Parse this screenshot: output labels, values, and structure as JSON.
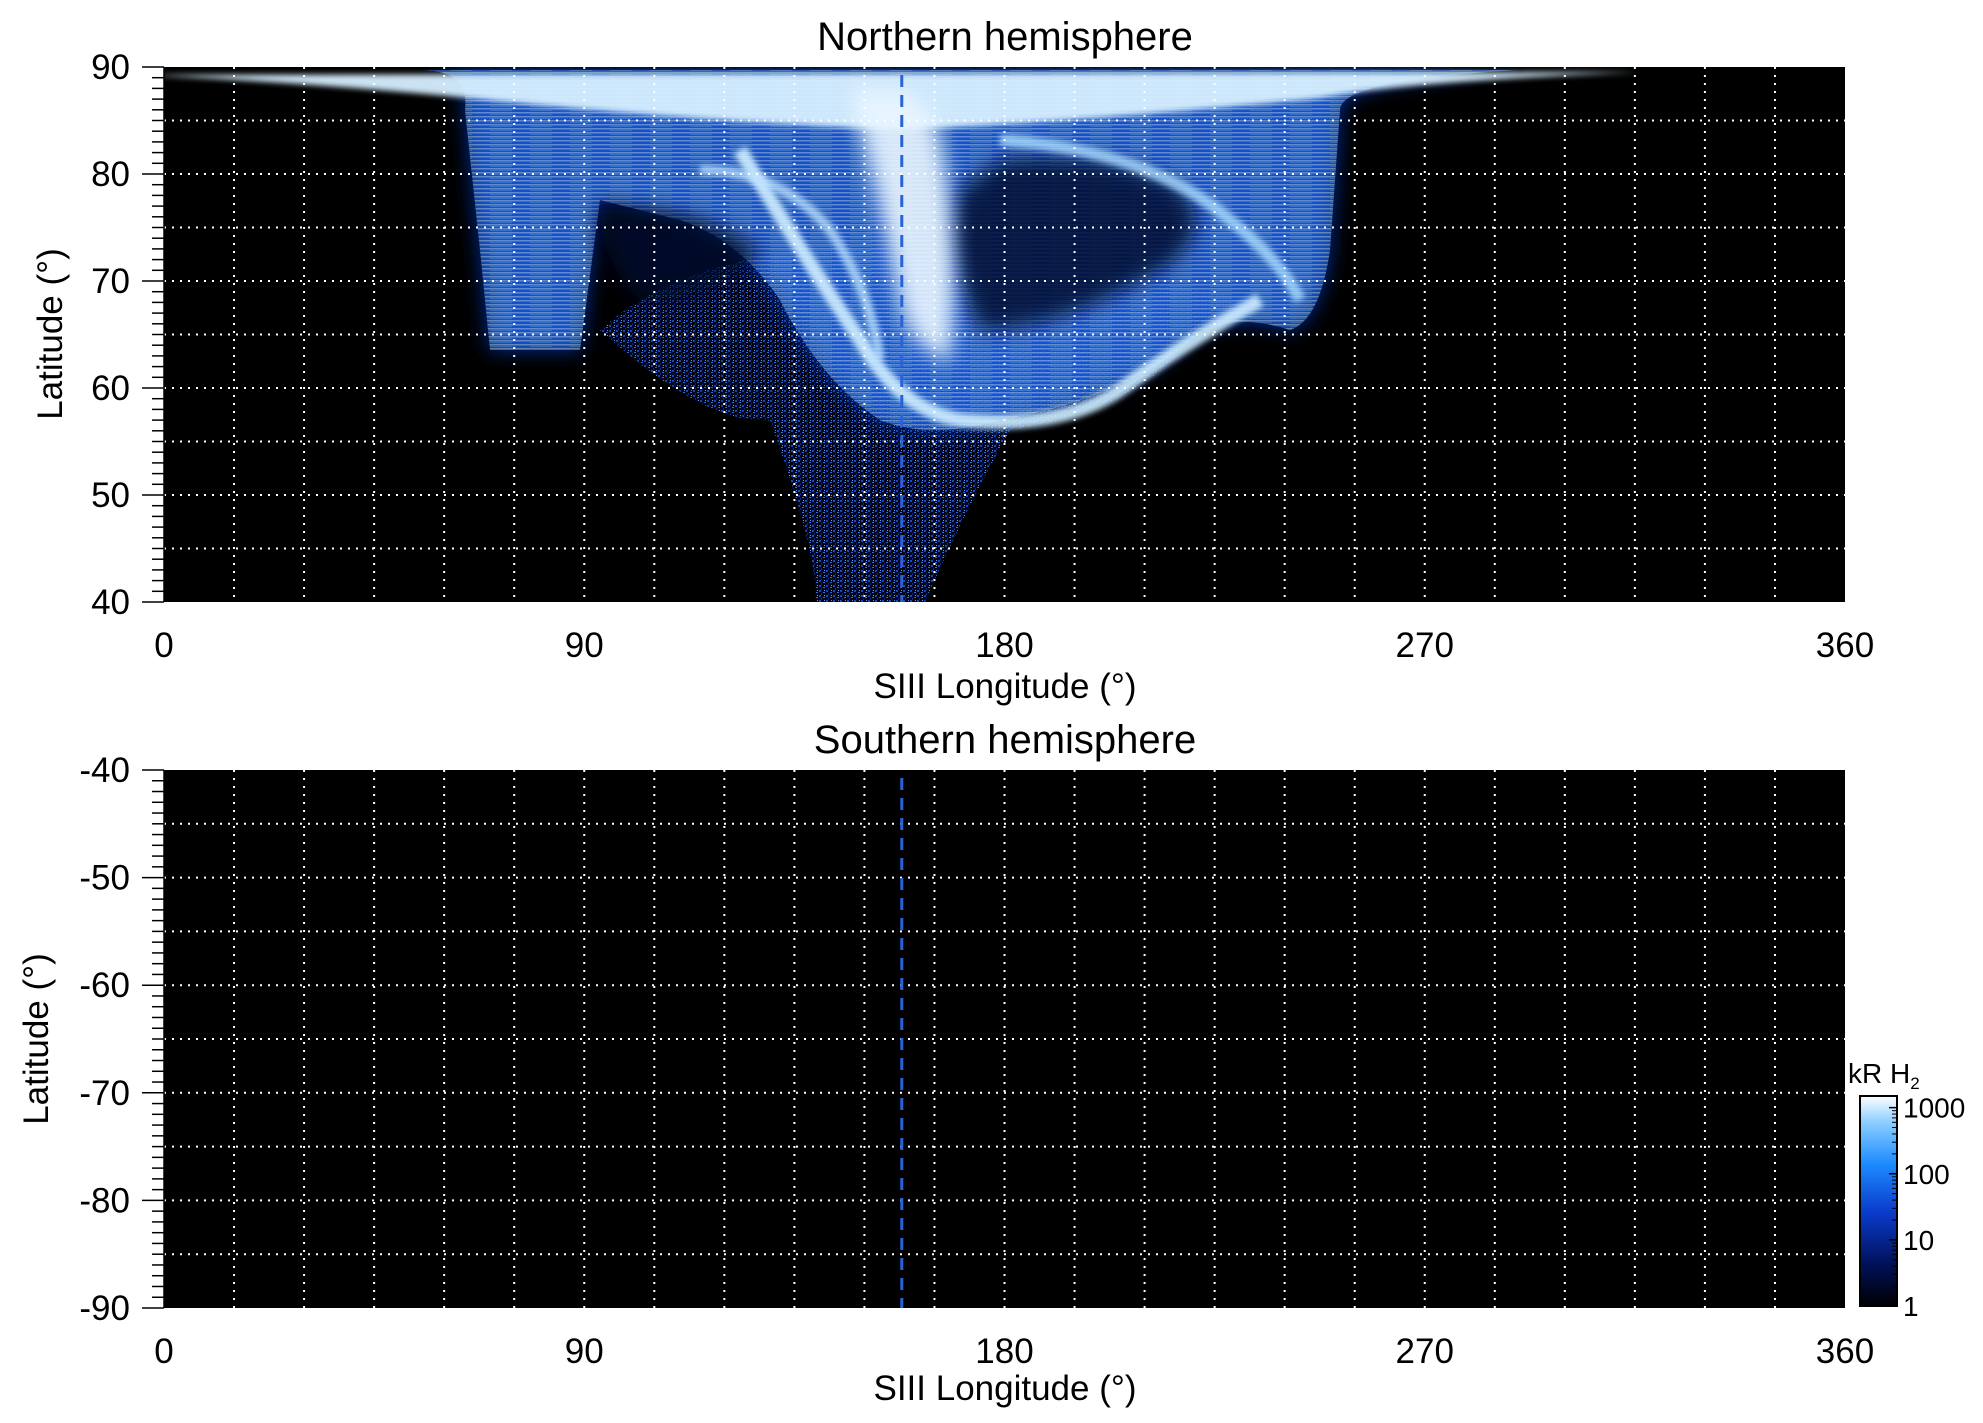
{
  "chart_data": [
    {
      "type": "heatmap",
      "title": "Northern hemisphere",
      "xlabel": "SIII Longitude (°)",
      "ylabel": "Latitude (°)",
      "xlim": [
        0,
        360
      ],
      "ylim": [
        40,
        90
      ],
      "xticks": [
        "0",
        "90",
        "180",
        "270",
        "360"
      ],
      "yticks": [
        "40",
        "50",
        "60",
        "70",
        "80",
        "90"
      ],
      "grid": true,
      "grid_style": "dotted white",
      "reference_longitude": 158,
      "background_color": "#000000",
      "emission": {
        "description_of_data": "auroral H2 emission intensity mapped in SIII longitude vs latitude; bright oval spanning ~60-250° longitude, 50-90° latitude",
        "oval_upper_lon_range": [
          65,
          250
        ],
        "oval_top_lat": 89.5,
        "main_arc_points": [
          [
            120,
            78
          ],
          [
            140,
            72
          ],
          [
            155,
            63
          ],
          [
            175,
            60
          ],
          [
            200,
            63
          ],
          [
            225,
            67
          ],
          [
            240,
            71
          ]
        ],
        "diffuse_tail_lon_range": [
          135,
          180
        ],
        "diffuse_tail_min_lat": 40
      }
    },
    {
      "type": "heatmap",
      "title": "Southern hemisphere",
      "xlabel": "SIII Longitude (°)",
      "ylabel": "Latitude (°)",
      "xlim": [
        0,
        360
      ],
      "ylim": [
        -90,
        -40
      ],
      "xticks": [
        "0",
        "90",
        "180",
        "270",
        "360"
      ],
      "yticks": [
        "-40",
        "-50",
        "-60",
        "-70",
        "-80",
        "-90"
      ],
      "grid": true,
      "grid_style": "dotted white",
      "reference_longitude": 158,
      "background_color": "#000000",
      "emission": null
    }
  ],
  "colorbar": {
    "label_main": "kR H",
    "label_sub": "2",
    "scale": "log",
    "ticks": [
      "1",
      "10",
      "100",
      "1000"
    ],
    "colors": [
      "#000000",
      "#00115a",
      "#0a3ccc",
      "#1e8cff",
      "#8fd0ff",
      "#ffffff"
    ]
  }
}
